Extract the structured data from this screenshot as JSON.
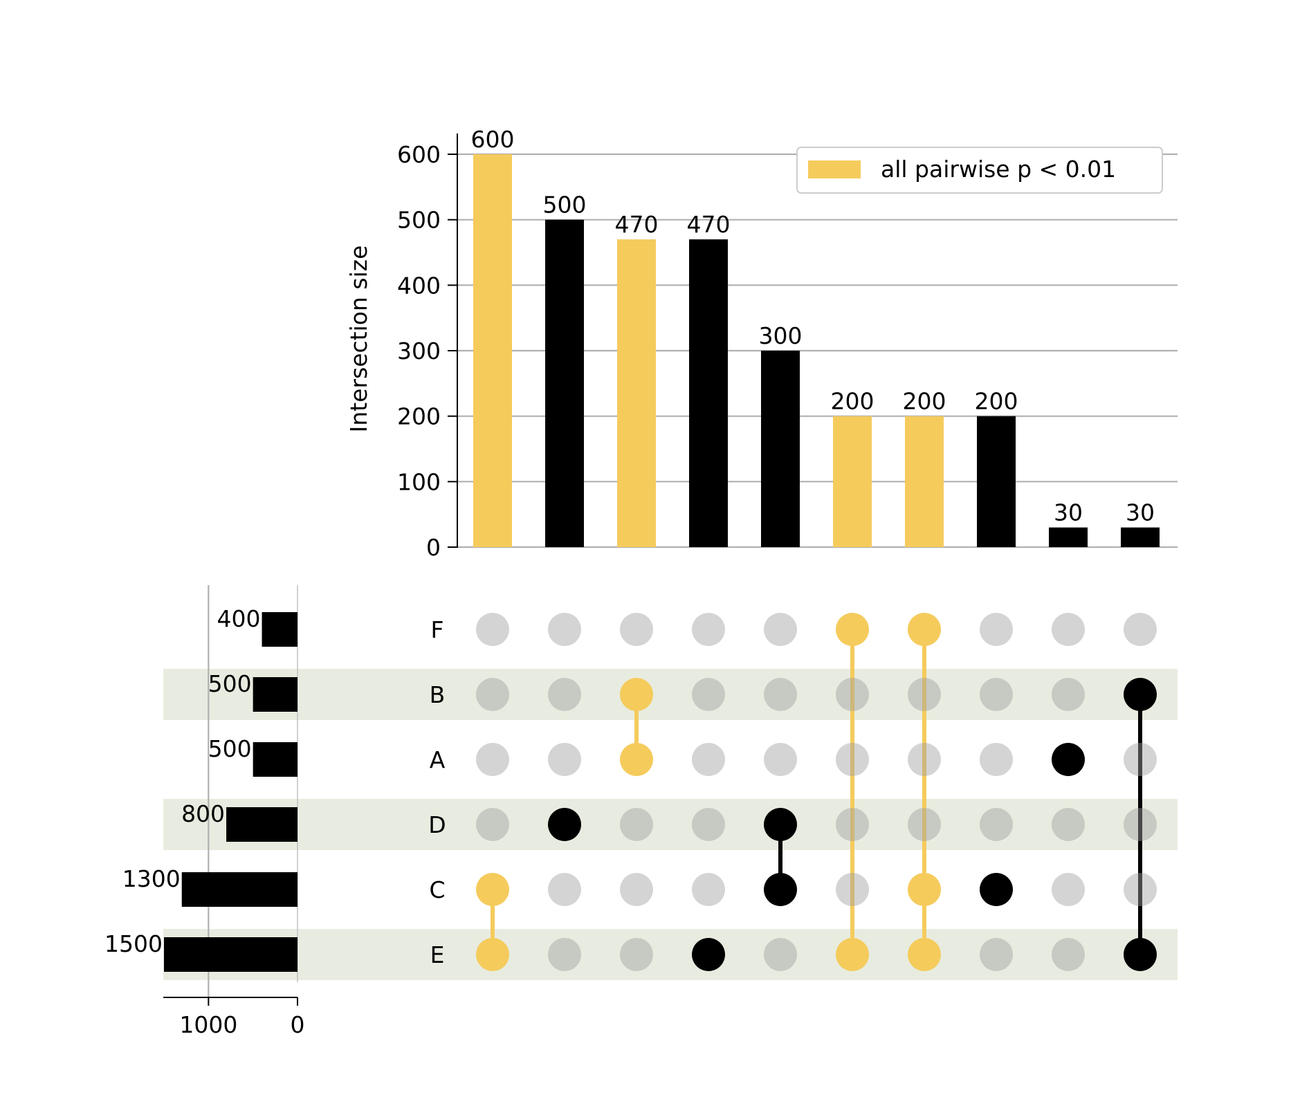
{
  "chart_data": {
    "type": "upset",
    "ylabel": "Intersection size",
    "y_ticks": [
      "0",
      "100",
      "200",
      "300",
      "400",
      "500",
      "600"
    ],
    "ylim": [
      0,
      630
    ],
    "legend": {
      "label": "all pairwise p < 0.01",
      "position": "top-right"
    },
    "grid": true,
    "highlight_color": "#F5CB5C",
    "default_color": "#000000",
    "inactive_dot_color": "#D3D3D3",
    "shaded_row_color": "#E8ECE0",
    "sets": [
      "F",
      "B",
      "A",
      "D",
      "C",
      "E"
    ],
    "set_sizes": [
      400,
      500,
      500,
      800,
      1300,
      1500
    ],
    "set_size_labels": [
      "400",
      "500",
      "500",
      "800",
      "1300",
      "1500"
    ],
    "set_size_ticks": [
      "1000",
      "0"
    ],
    "set_size_xlim": [
      1500,
      0
    ],
    "intersections": [
      {
        "members": [
          "C",
          "E"
        ],
        "size": 600,
        "label": "600",
        "highlight": true
      },
      {
        "members": [
          "D"
        ],
        "size": 500,
        "label": "500",
        "highlight": false
      },
      {
        "members": [
          "B",
          "A"
        ],
        "size": 470,
        "label": "470",
        "highlight": true
      },
      {
        "members": [
          "E"
        ],
        "size": 470,
        "label": "470",
        "highlight": false
      },
      {
        "members": [
          "D",
          "C"
        ],
        "size": 300,
        "label": "300",
        "highlight": false
      },
      {
        "members": [
          "F",
          "E"
        ],
        "size": 200,
        "label": "200",
        "highlight": true
      },
      {
        "members": [
          "F",
          "C",
          "E"
        ],
        "size": 200,
        "label": "200",
        "highlight": true
      },
      {
        "members": [
          "C"
        ],
        "size": 200,
        "label": "200",
        "highlight": false
      },
      {
        "members": [
          "A"
        ],
        "size": 30,
        "label": "30",
        "highlight": false
      },
      {
        "members": [
          "B",
          "E"
        ],
        "size": 30,
        "label": "30",
        "highlight": false
      }
    ]
  }
}
